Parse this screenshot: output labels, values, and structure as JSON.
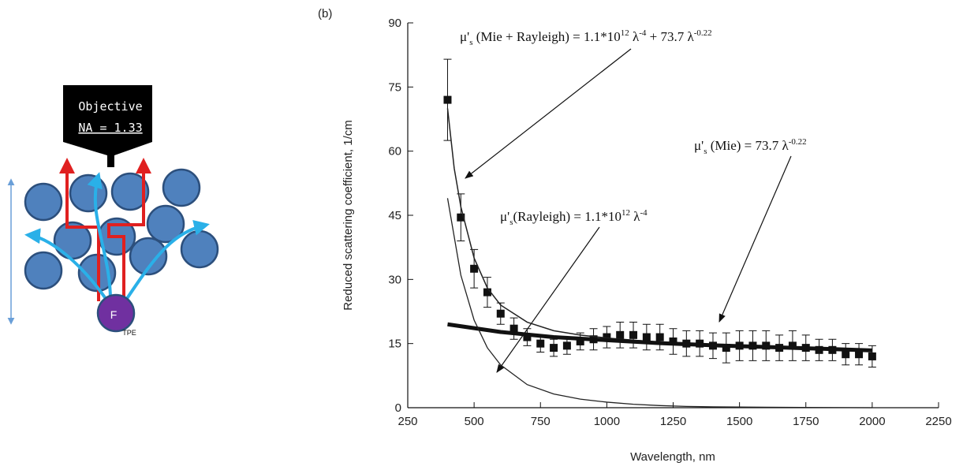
{
  "diagram": {
    "objective_label": "Objective",
    "na_label": "NA = 1.33",
    "fluorophore": "F",
    "fluorophore_sub": "TPE"
  },
  "chart_data": {
    "type": "scatter",
    "panel_label": "(b)",
    "x_label": "Wavelength, nm",
    "y_label": "Reduced scattering coefficient, 1/cm",
    "xlim": [
      250,
      2250
    ],
    "xticks": [
      250,
      500,
      750,
      1000,
      1250,
      1500,
      1750,
      2000,
      2250
    ],
    "ylim": [
      0,
      90
    ],
    "yticks": [
      0,
      15,
      30,
      45,
      60,
      75,
      90
    ],
    "series": [
      {
        "type": "scatter",
        "color": "#111111",
        "x": [
          400,
          450,
          500,
          550,
          600,
          650,
          700,
          750,
          800,
          850,
          900,
          950,
          1000,
          1050,
          1100,
          1150,
          1200,
          1250,
          1300,
          1350,
          1400,
          1450,
          1500,
          1550,
          1600,
          1650,
          1700,
          1750,
          1800,
          1850,
          1900,
          1950,
          2000
        ],
        "values": [
          72,
          44.5,
          32.5,
          27,
          22,
          18.5,
          16.5,
          15,
          14,
          14.5,
          15.5,
          16,
          16.5,
          17,
          17,
          16.5,
          16.5,
          15.5,
          15,
          15,
          14.5,
          14,
          14.5,
          14.5,
          14.5,
          14,
          14.5,
          14,
          13.5,
          13.5,
          12.5,
          12.5,
          12
        ],
        "errors": [
          9.5,
          5.5,
          4.5,
          3.5,
          2.5,
          2.5,
          2,
          2,
          2,
          2,
          2,
          2.5,
          2.5,
          3,
          3,
          3,
          3,
          3,
          3,
          3,
          3,
          3.5,
          3.5,
          3.5,
          3.5,
          3,
          3.5,
          3,
          2.5,
          2.5,
          2.5,
          2.5,
          2.5
        ]
      },
      {
        "type": "line",
        "color": "#222222",
        "line_width": 1.5,
        "x": [
          400,
          425,
          450,
          500,
          550,
          600,
          700,
          800,
          900,
          1000,
          1200,
          1400,
          1600,
          1800,
          2000
        ],
        "values": [
          70,
          56,
          47,
          35,
          28,
          24,
          20,
          18,
          17,
          16.3,
          15.3,
          14.6,
          14.1,
          13.7,
          13.4
        ]
      },
      {
        "type": "line",
        "color": "#111111",
        "line_width": 5,
        "x": [
          400,
          600,
          800,
          1000,
          1200,
          1400,
          1600,
          1800,
          2000
        ],
        "values": [
          19.5,
          17.7,
          16.5,
          15.8,
          15.1,
          14.6,
          14.2,
          13.8,
          13.4
        ]
      },
      {
        "type": "line",
        "color": "#222222",
        "line_width": 1.3,
        "x": [
          400,
          450,
          500,
          550,
          600,
          700,
          800,
          900,
          1000,
          1100,
          1200,
          1300,
          1400,
          1600,
          2000
        ],
        "values": [
          49,
          31,
          20.5,
          14,
          10,
          5.4,
          3.2,
          2,
          1.3,
          0.8,
          0.5,
          0.3,
          0.2,
          0.1,
          0
        ]
      }
    ],
    "annotations": [
      {
        "parts": [
          {
            "text": "μ'"
          },
          {
            "text": "s",
            "sub": true
          },
          {
            "text": " (Mie + Rayleigh) = 1.1*10"
          },
          {
            "text": "12",
            "sup": true
          },
          {
            "text": " λ"
          },
          {
            "text": "-4",
            "sup": true
          },
          {
            "text": " + 73.7 λ"
          },
          {
            "text": "-0.22",
            "sup": true
          }
        ]
      },
      {
        "parts": [
          {
            "text": "μ'"
          },
          {
            "text": "s",
            "sub": true
          },
          {
            "text": "(Rayleigh) = 1.1*10"
          },
          {
            "text": "12",
            "sup": true
          },
          {
            "text": " λ"
          },
          {
            "text": "-4",
            "sup": true
          }
        ]
      },
      {
        "parts": [
          {
            "text": "μ'"
          },
          {
            "text": "s",
            "sub": true
          },
          {
            "text": " (Mie) = 73.7 λ"
          },
          {
            "text": "-0.22",
            "sup": true
          }
        ]
      }
    ]
  }
}
